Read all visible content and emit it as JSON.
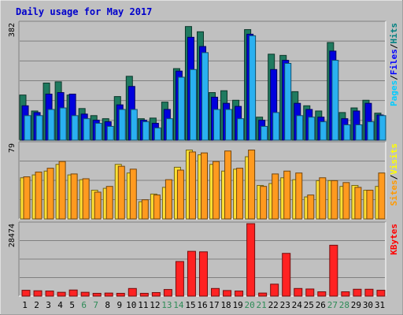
{
  "chart_data": {
    "type": "bar",
    "title": "Daily usage for May 2017",
    "x": [
      "1",
      "2",
      "3",
      "4",
      "5",
      "6",
      "7",
      "8",
      "9",
      "10",
      "11",
      "12",
      "13",
      "14",
      "15",
      "16",
      "17",
      "18",
      "19",
      "20",
      "21",
      "22",
      "23",
      "24",
      "25",
      "26",
      "27",
      "28",
      "29",
      "30",
      "31"
    ],
    "weekend_days": [
      "6",
      "7",
      "13",
      "14",
      "20",
      "21",
      "27",
      "28"
    ],
    "panels": [
      {
        "name": "top",
        "max_label": "382",
        "ymax": 382,
        "legend": [
          "Pages",
          "/",
          "Files",
          "/",
          "Hits"
        ],
        "legend_colors": [
          "#00ccff",
          "#000000",
          "#0000ff",
          "#000000",
          "#008080"
        ],
        "series": [
          {
            "name": "Hits",
            "color": "#1f7a5f",
            "values": [
              147,
              95,
              186,
              190,
              147,
              103,
              80,
              70,
              142,
              208,
              70,
              72,
              124,
              233,
              370,
              353,
              155,
              161,
              130,
              360,
              75,
              280,
              276,
              158,
              112,
              95,
              318,
              90,
              105,
              130,
              88
            ]
          },
          {
            "name": "Files",
            "color": "#0000dd",
            "values": [
              112,
              90,
              150,
              155,
              150,
              85,
              65,
              60,
              115,
              175,
              65,
              55,
              100,
              225,
              335,
              305,
              140,
              120,
              110,
              345,
              65,
              230,
              260,
              120,
              100,
              75,
              290,
              70,
              95,
              120,
              82
            ]
          },
          {
            "name": "Pages",
            "color": "#2ab0f0",
            "values": [
              80,
              80,
              100,
              105,
              80,
              70,
              55,
              45,
              100,
              100,
              60,
              40,
              70,
              205,
              230,
              285,
              100,
              100,
              70,
              340,
              45,
              90,
              250,
              80,
              75,
              60,
              260,
              50,
              50,
              60,
              80
            ]
          }
        ]
      },
      {
        "name": "middle",
        "max_label": "79",
        "ymax": 79,
        "legend": [
          "Sites",
          "/",
          "Visits"
        ],
        "legend_colors": [
          "#ff9900",
          "#000000",
          "#ffff00"
        ],
        "series": [
          {
            "name": "Visits",
            "color": "#ffe033",
            "values": [
              43,
              46,
              50,
              57,
              46,
              41,
              30,
              32,
              57,
              48,
              18,
              26,
              33,
              54,
              72,
              67,
              57,
              50,
              52,
              65,
              35,
              37,
              43,
              41,
              23,
              40,
              40,
              34,
              35,
              30,
              34
            ]
          },
          {
            "name": "Sites",
            "color": "#ff9a1f",
            "values": [
              44,
              49,
              53,
              60,
              47,
              42,
              28,
              34,
              55,
              52,
              20,
              25,
              41,
              51,
              70,
              69,
              60,
              71,
              53,
              72,
              34,
              47,
              50,
              48,
              25,
              43,
              40,
              38,
              33,
              30,
              48
            ]
          }
        ]
      },
      {
        "name": "bottom",
        "max_label": "28474",
        "ymax": 28474,
        "legend": [
          "KBytes"
        ],
        "legend_colors": [
          "#ff0000"
        ],
        "series": [
          {
            "name": "KBytes",
            "color": "#ff2222",
            "values": [
              2300,
              2100,
              2000,
              1500,
              2400,
              1500,
              1100,
              1200,
              1100,
              3000,
              1100,
              1400,
              2600,
              13600,
              17600,
              17400,
              3000,
              2200,
              2000,
              28474,
              1200,
              4700,
              16800,
              3000,
              2800,
              1700,
              20000,
              1700,
              2700,
              2700,
              2300
            ]
          }
        ]
      }
    ],
    "grid": true
  }
}
